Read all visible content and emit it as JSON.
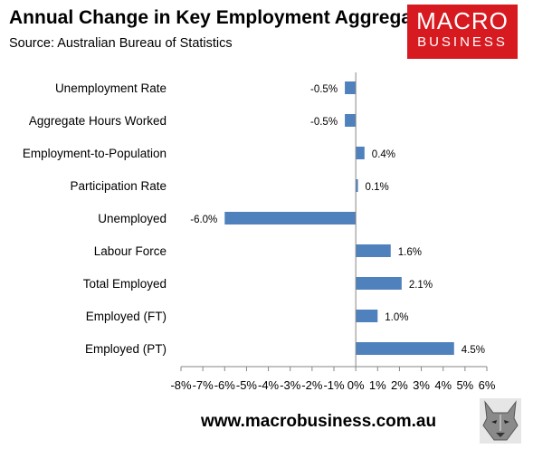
{
  "header": {
    "title": "Annual Change in Key Employment Aggregates",
    "subtitle": "Source: Australian Bureau of Statistics"
  },
  "logo": {
    "line1": "MACRO",
    "line2": "BUSINESS"
  },
  "footer": {
    "url": "www.macrobusiness.com.au"
  },
  "chart_data": {
    "type": "bar",
    "orientation": "horizontal",
    "title": "Annual Change in Key Employment Aggregates",
    "categories": [
      "Unemployment Rate",
      "Aggregate Hours Worked",
      "Employment-to-Population",
      "Participation Rate",
      "Unemployed",
      "Labour Force",
      "Total Employed",
      "Employed (FT)",
      "Employed (PT)"
    ],
    "values": [
      -0.5,
      -0.5,
      0.4,
      0.1,
      -6.0,
      1.6,
      2.1,
      1.0,
      4.5
    ],
    "data_labels": [
      "-0.5%",
      "-0.5%",
      "0.4%",
      "0.1%",
      "-6.0%",
      "1.6%",
      "2.1%",
      "1.0%",
      "4.5%"
    ],
    "xlim": [
      -8,
      6
    ],
    "x_ticks": [
      -8,
      -7,
      -6,
      -5,
      -4,
      -3,
      -2,
      -1,
      0,
      1,
      2,
      3,
      4,
      5,
      6
    ],
    "x_tick_labels": [
      "-8%",
      "-7%",
      "-6%",
      "-5%",
      "-4%",
      "-3%",
      "-2%",
      "-1%",
      "0%",
      "1%",
      "2%",
      "3%",
      "4%",
      "5%",
      "6%"
    ],
    "bar_color": "#4f81bd",
    "grid": false,
    "legend": "none"
  }
}
